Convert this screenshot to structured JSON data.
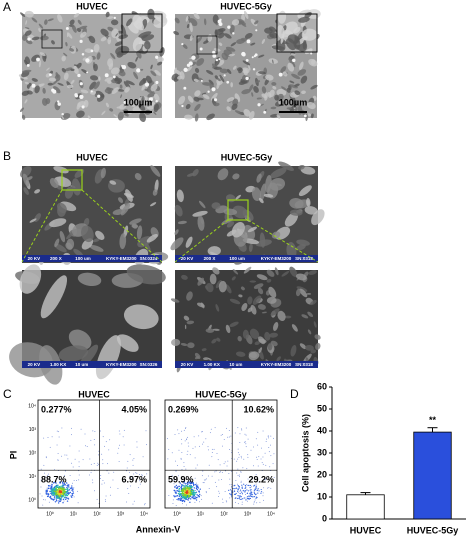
{
  "panels": [
    "A",
    "B",
    "C",
    "D"
  ],
  "panel_a": {
    "labels": [
      "HUVEC",
      "HUVEC-5Gy"
    ],
    "scale_bars": [
      "100μm",
      "100μm"
    ]
  },
  "panel_b": {
    "labels": [
      "HUVEC",
      "HUVEC-5Gy"
    ],
    "sem_bars": [
      [
        "20 KV",
        "200 X",
        "100 um",
        "KYKY-EM3200",
        "SN:0324"
      ],
      [
        "20 KV",
        "200 X",
        "100 um",
        "KYKY-EM3200",
        "SN:0318"
      ],
      [
        "20 KV",
        "1.00 KX",
        "10 um",
        "KYKY-EM3200",
        "SN:0326"
      ],
      [
        "20 KV",
        "1.00 KX",
        "10 um",
        "KYKY-EM3200",
        "SN:0318"
      ]
    ]
  },
  "panel_c": {
    "labels": [
      "HUVEC",
      "HUVEC-5Gy"
    ],
    "quadrants": [
      [
        "0.277%",
        "4.05%",
        "88.7%",
        "6.97%"
      ],
      [
        "0.269%",
        "10.62%",
        "59.9%",
        "29.2%"
      ]
    ],
    "x_label": "Annexin-V",
    "y_label": "PI",
    "ticks": [
      "10⁰",
      "10¹",
      "10²",
      "10³",
      "10⁴"
    ]
  },
  "chart_data": {
    "type": "bar",
    "y_label": "Cell apoptosis (%)",
    "categories": [
      "HUVEC",
      "HUVEC-5Gy"
    ],
    "values": [
      11,
      39.5
    ],
    "errors": [
      1,
      2
    ],
    "colors": [
      "#ffffff",
      "#2a4fdc"
    ],
    "ylim": [
      0,
      60
    ],
    "yticks": [
      0,
      10,
      20,
      30,
      40,
      50,
      60
    ],
    "annotation": "**"
  }
}
